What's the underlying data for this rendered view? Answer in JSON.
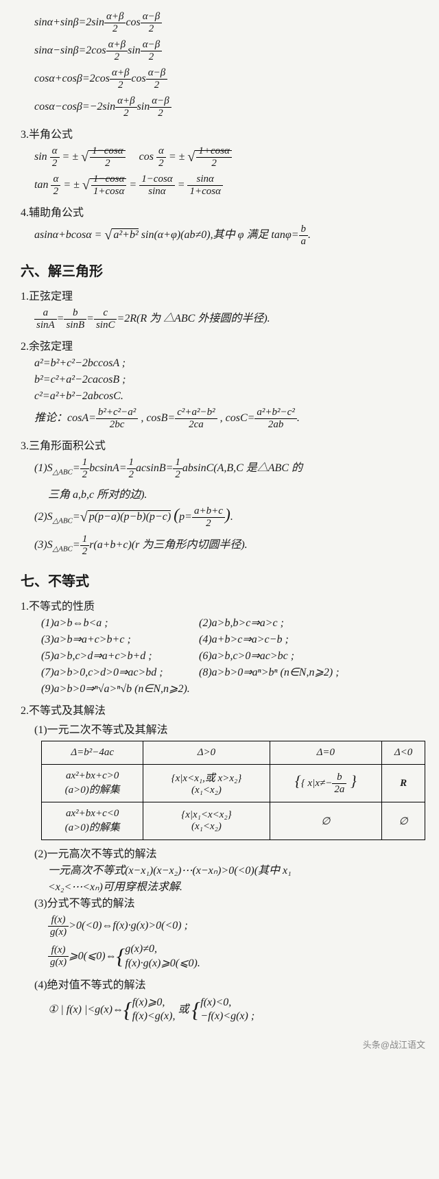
{
  "sumdiff": {
    "f1": {
      "lhs": "sinα+sinβ=2sin",
      "arg1n": "α+β",
      "arg1d": "2",
      "mid": "cos",
      "arg2n": "α−β",
      "arg2d": "2"
    },
    "f2": {
      "lhs": "sinα−sinβ=2cos",
      "arg1n": "α+β",
      "arg1d": "2",
      "mid": "sin",
      "arg2n": "α−β",
      "arg2d": "2"
    },
    "f3": {
      "lhs": "cosα+cosβ=2cos",
      "arg1n": "α+β",
      "arg1d": "2",
      "mid": "cos",
      "arg2n": "α−β",
      "arg2d": "2"
    },
    "f4": {
      "lhs": "cosα−cosβ=−2sin",
      "arg1n": "α+β",
      "arg1d": "2",
      "mid": "sin",
      "arg2n": "α−β",
      "arg2d": "2"
    }
  },
  "half": {
    "title": "3.半角公式",
    "sin": {
      "l": "sin ",
      "argn": "α",
      "argd": "2",
      "eq": " = ± ",
      "sn": "1−cosα",
      "sd": "2"
    },
    "cos": {
      "l": "cos ",
      "argn": "α",
      "argd": "2",
      "eq": " = ± ",
      "sn": "1+cosα",
      "sd": "2"
    },
    "tan": {
      "l": "tan ",
      "argn": "α",
      "argd": "2",
      "eq": " = ± ",
      "sn": "1−cosα",
      "sd": "1+cosα",
      "e2n": "1−cosα",
      "e2d": "sinα",
      "e3n": "sinα",
      "e3d": "1+cosα"
    }
  },
  "aux": {
    "title": "4.辅助角公式",
    "body1": "asinα+bcosα = ",
    "sq": "a²+b²",
    "body2": " sin(α+φ)(ab≠0),其中 φ 满足 tanφ=",
    "fn": "b",
    "fd": "a",
    "end": "."
  },
  "sec6": {
    "title": "六、解三角形",
    "t1": "1.正弦定理",
    "sine": {
      "an": "a",
      "ad": "sinA",
      "bn": "b",
      "bd": "sinB",
      "cn": "c",
      "cd": "sinC",
      "tail": "=2R(R 为 △ABC 外接圆的半径)."
    },
    "t2": "2.余弦定理",
    "cos1": "a²=b²+c²−2bccosA ;",
    "cos2": "b²=c²+a²−2cacosB ;",
    "cos3": "c²=a²+b²−2abcosC.",
    "corr": {
      "pre": "推论：cosA=",
      "an": "b²+c²−a²",
      "ad": "2bc",
      "m1": " , cosB=",
      "bn": "c²+a²−b²",
      "bd": "2ca",
      "m2": " , cosC=",
      "cn": "a²+b²−c²",
      "cd": "2ab",
      "end": "."
    },
    "t3": "3.三角形面积公式",
    "area1": {
      "pre": "(1)S",
      "sub": "△ABC",
      "eq": "=",
      "h": "1",
      "d": "2",
      "b1": "bcsinA=",
      "b2": "acsinB=",
      "b3": "absinC(A,B,C 是△ABC 的",
      "line2": "三角 a,b,c 所对的边)."
    },
    "area2": {
      "pre": "(2)S",
      "sub": "△ABC",
      "eq": "=",
      "sq": "p(p−a)(p−b)(p−c)",
      "pn": "a+b+c",
      "pd": "2"
    },
    "area3": {
      "pre": "(3)S",
      "sub": "△ABC",
      "eq": "=",
      "h": "1",
      "d": "2",
      "body": "r(a+b+c)(r 为三角形内切圆半径)."
    }
  },
  "sec7": {
    "title": "七、不等式",
    "t1": "1.不等式的性质",
    "p1": "(1)a>b⇔b<a ;",
    "p2": "(2)a>b,b>c⇒a>c ;",
    "p3": "(3)a>b⇒a+c>b+c ;",
    "p4": "(4)a+b>c⇒a>c−b ;",
    "p5": "(5)a>b,c>d⇒a+c>b+d ;",
    "p6": "(6)a>b,c>0⇒ac>bc ;",
    "p7": "(7)a>b>0,c>d>0⇒ac>bd ;",
    "p8": "(8)a>b>0⇒aⁿ>bⁿ  (n∈N,n⩾2) ;",
    "p9": "(9)a>b>0⇒ⁿ√a>ⁿ√b  (n∈N,n⩾2).",
    "t2": "2.不等式及其解法",
    "s1": "(1)一元二次不等式及其解法",
    "table": {
      "h1": "Δ=b²−4ac",
      "h2": "Δ>0",
      "h3": "Δ=0",
      "h4": "Δ<0",
      "r1c1a": "ax²+bx+c>0",
      "r1c1b": "(a>0)的解集",
      "r1c2a": "{x|x<x₁,或 x>x₂}",
      "r1c2b": "(x₁<x₂)",
      "r1c3": "{ x|x≠−",
      "r1c3n": "b",
      "r1c3d": "2a",
      "r1c3e": " }",
      "r1c4": "R",
      "r2c1a": "ax²+bx+c<0",
      "r2c1b": "(a>0)的解集",
      "r2c2a": "{x|x₁<x<x₂}",
      "r2c2b": "(x₁<x₂)",
      "r2c3": "∅",
      "r2c4": "∅"
    },
    "s2": "(2)一元高次不等式的解法",
    "s2b1": "一元高次不等式(x−x₁)(x−x₂)⋯(x−xₙ)>0(<0)(其中 x₁",
    "s2b2": "<x₂<⋯<xₙ)可用穿根法求解.",
    "s3": "(3)分式不等式的解法",
    "frac1": {
      "fn": "f(x)",
      "fd": "g(x)",
      "body": ">0(<0)⇔f(x)·g(x)>0(<0) ;"
    },
    "frac2": {
      "fn": "f(x)",
      "fd": "g(x)",
      "pre": "⩾0(⩽0)⇔",
      "c1": "g(x)≠0,",
      "c2": "f(x)·g(x)⩾0(⩽0)."
    },
    "s4": "(4)绝对值不等式的解法",
    "abs1": {
      "pre": "① | f(x) |<g(x)⇔",
      "c1": "f(x)⩾0,",
      "c2": "f(x)<g(x),",
      "mid": " 或 ",
      "d1": "f(x)<0,",
      "d2": "−f(x)<g(x) ;"
    }
  },
  "footer": "头条@战江语文"
}
